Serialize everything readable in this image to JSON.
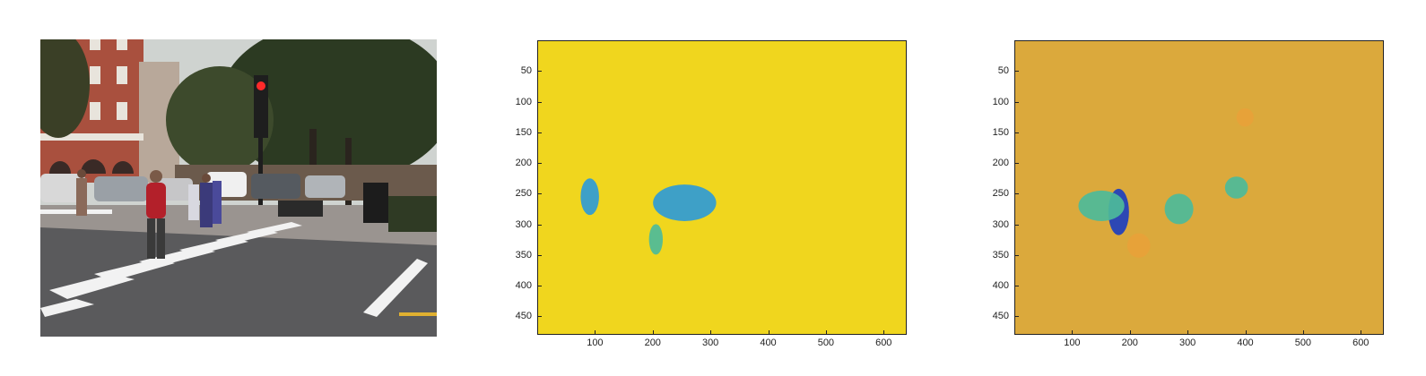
{
  "colors": {
    "page_background": "#ffffff",
    "flow_x_background": "#f0d61e",
    "flow_y_background": "#dba93c",
    "flow_blue": "#2f9bd6",
    "flow_dark_blue": "#1e3fbf",
    "flow_teal": "#4dbb9a",
    "flow_orange": "#e8a23a"
  },
  "panels": [
    {
      "kind": "photo",
      "content": "street-crosswalk-scene"
    },
    {
      "kind": "heatmap",
      "image_size": [
        640,
        480
      ],
      "colormap": "parula"
    },
    {
      "kind": "heatmap",
      "image_size": [
        640,
        480
      ],
      "colormap": "parula"
    }
  ],
  "chart_data": [
    {
      "type": "heatmap",
      "title": "",
      "xlabel": "",
      "ylabel": "",
      "xlim": [
        0,
        640
      ],
      "ylim": [
        480,
        0
      ],
      "x_ticks": [
        "100",
        "200",
        "300",
        "400",
        "500",
        "600"
      ],
      "y_ticks": [
        "50",
        "100",
        "150",
        "200",
        "250",
        "300",
        "350",
        "400",
        "450"
      ],
      "regions": [
        {
          "x": 90,
          "y": 255,
          "rx": 16,
          "ry": 30,
          "color": "flow_blue"
        },
        {
          "x": 255,
          "y": 265,
          "rx": 55,
          "ry": 30,
          "color": "flow_blue"
        },
        {
          "x": 205,
          "y": 325,
          "rx": 12,
          "ry": 25,
          "color": "flow_teal"
        }
      ]
    },
    {
      "type": "heatmap",
      "title": "",
      "xlabel": "",
      "ylabel": "",
      "xlim": [
        0,
        640
      ],
      "ylim": [
        480,
        0
      ],
      "x_ticks": [
        "100",
        "200",
        "300",
        "400",
        "500",
        "600"
      ],
      "y_ticks": [
        "50",
        "100",
        "150",
        "200",
        "250",
        "300",
        "350",
        "400",
        "450"
      ],
      "regions": [
        {
          "x": 180,
          "y": 280,
          "rx": 18,
          "ry": 38,
          "color": "flow_dark_blue"
        },
        {
          "x": 150,
          "y": 270,
          "rx": 40,
          "ry": 25,
          "color": "flow_teal"
        },
        {
          "x": 285,
          "y": 275,
          "rx": 25,
          "ry": 25,
          "color": "flow_teal"
        },
        {
          "x": 385,
          "y": 240,
          "rx": 20,
          "ry": 18,
          "color": "flow_teal"
        },
        {
          "x": 400,
          "y": 125,
          "rx": 15,
          "ry": 15,
          "color": "flow_orange"
        },
        {
          "x": 215,
          "y": 335,
          "rx": 20,
          "ry": 20,
          "color": "flow_orange"
        }
      ]
    }
  ]
}
